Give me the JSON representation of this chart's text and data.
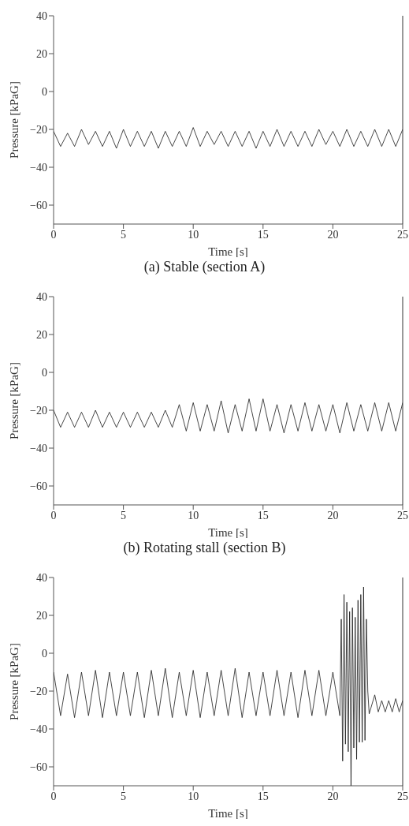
{
  "chart_data": [
    {
      "type": "line",
      "title": "(a) Stable (section A)",
      "xlabel": "Time [s]",
      "ylabel": "Pressure [kPaG]",
      "xlim": [
        0,
        25
      ],
      "ylim": [
        -70,
        40
      ],
      "xticks": [
        0,
        5,
        10,
        15,
        20,
        25
      ],
      "yticks": [
        -60,
        -40,
        -20,
        0,
        20,
        40
      ],
      "marker": "none",
      "line_style": "solid",
      "x": [
        0,
        0.5,
        1,
        1.5,
        2,
        2.5,
        3,
        3.5,
        4,
        4.5,
        5,
        5.5,
        6,
        6.5,
        7,
        7.5,
        8,
        8.5,
        9,
        9.5,
        10,
        10.5,
        11,
        11.5,
        12,
        12.5,
        13,
        13.5,
        14,
        14.5,
        15,
        15.5,
        16,
        16.5,
        17,
        17.5,
        18,
        18.5,
        19,
        19.5,
        20,
        20.5,
        21,
        21.5,
        22,
        22.5,
        23,
        23.5,
        24,
        24.5,
        25
      ],
      "series": [
        {
          "color": "#1a1a1a",
          "values": [
            -21,
            -29,
            -22,
            -29,
            -20,
            -28,
            -21,
            -29,
            -21,
            -30,
            -20,
            -29,
            -21,
            -29,
            -21,
            -30,
            -21,
            -29,
            -21,
            -29,
            -19,
            -29,
            -21,
            -28,
            -21,
            -29,
            -21,
            -29,
            -21,
            -30,
            -21,
            -29,
            -20,
            -29,
            -21,
            -29,
            -21,
            -29,
            -20,
            -28,
            -21,
            -29,
            -20,
            -29,
            -21,
            -29,
            -20,
            -29,
            -20,
            -29,
            -20
          ]
        }
      ]
    },
    {
      "type": "line",
      "title": "(b) Rotating stall (section B)",
      "xlabel": "Time [s]",
      "ylabel": "Pressure [kPaG]",
      "xlim": [
        0,
        25
      ],
      "ylim": [
        -70,
        40
      ],
      "xticks": [
        0,
        5,
        10,
        15,
        20,
        25
      ],
      "yticks": [
        -60,
        -40,
        -20,
        0,
        20,
        40
      ],
      "marker": "none",
      "line_style": "solid",
      "x": [
        0,
        0.5,
        1,
        1.5,
        2,
        2.5,
        3,
        3.5,
        4,
        4.5,
        5,
        5.5,
        6,
        6.5,
        7,
        7.5,
        8,
        8.5,
        9,
        9.5,
        10,
        10.5,
        11,
        11.5,
        12,
        12.5,
        13,
        13.5,
        14,
        14.5,
        15,
        15.5,
        16,
        16.5,
        17,
        17.5,
        18,
        18.5,
        19,
        19.5,
        20,
        20.5,
        21,
        21.5,
        22,
        22.5,
        23,
        23.5,
        24,
        24.5,
        25
      ],
      "series": [
        {
          "color": "#1a1a1a",
          "values": [
            -20,
            -29,
            -21,
            -29,
            -21,
            -29,
            -20,
            -29,
            -21,
            -29,
            -21,
            -29,
            -21,
            -29,
            -21,
            -29,
            -20,
            -29,
            -17,
            -31,
            -16,
            -31,
            -17,
            -31,
            -15,
            -32,
            -17,
            -31,
            -14,
            -31,
            -14,
            -31,
            -17,
            -32,
            -17,
            -31,
            -16,
            -31,
            -17,
            -31,
            -17,
            -32,
            -16,
            -31,
            -17,
            -31,
            -16,
            -31,
            -16,
            -31,
            -16
          ]
        }
      ]
    },
    {
      "type": "line",
      "xlabel": "Time [s]",
      "ylabel": "Pressure [kPaG]",
      "xlim": [
        0,
        25
      ],
      "ylim": [
        -70,
        40
      ],
      "xticks": [
        0,
        5,
        10,
        15,
        20,
        25
      ],
      "yticks": [
        -60,
        -40,
        -20,
        0,
        20,
        40
      ],
      "marker": "none",
      "line_style": "solid",
      "x": [
        0,
        0.5,
        1,
        1.5,
        2,
        2.5,
        3,
        3.5,
        4,
        4.5,
        5,
        5.5,
        6,
        6.5,
        7,
        7.5,
        8,
        8.5,
        9,
        9.5,
        10,
        10.5,
        11,
        11.5,
        12,
        12.5,
        13,
        13.5,
        14,
        14.5,
        15,
        15.5,
        16,
        16.5,
        17,
        17.5,
        18,
        18.5,
        19,
        19.5,
        20,
        20.5,
        20.6,
        20.7,
        20.8,
        20.9,
        21,
        21.1,
        21.2,
        21.3,
        21.4,
        21.5,
        21.6,
        21.7,
        21.8,
        21.9,
        22,
        22.1,
        22.2,
        22.3,
        22.4,
        22.5,
        22.6,
        23,
        23.25,
        23.5,
        23.75,
        24,
        24.25,
        24.5,
        24.75,
        25
      ],
      "series": [
        {
          "color": "#1a1a1a",
          "values": [
            -10,
            -33,
            -11,
            -34,
            -10,
            -33,
            -9,
            -34,
            -10,
            -33,
            -10,
            -33,
            -10,
            -34,
            -9,
            -33,
            -8,
            -34,
            -10,
            -33,
            -9,
            -34,
            -10,
            -33,
            -9,
            -33,
            -8,
            -34,
            -10,
            -33,
            -10,
            -33,
            -9,
            -33,
            -10,
            -34,
            -9,
            -33,
            -9,
            -33,
            -10,
            -33,
            18,
            -57,
            31,
            -48,
            27,
            -52,
            22,
            -70,
            24,
            -50,
            19,
            -56,
            28,
            -47,
            31,
            -47,
            35,
            -46,
            18,
            -20,
            -32,
            -22,
            -31,
            -25,
            -31,
            -25,
            -31,
            -24,
            -31,
            -25
          ]
        }
      ]
    }
  ]
}
